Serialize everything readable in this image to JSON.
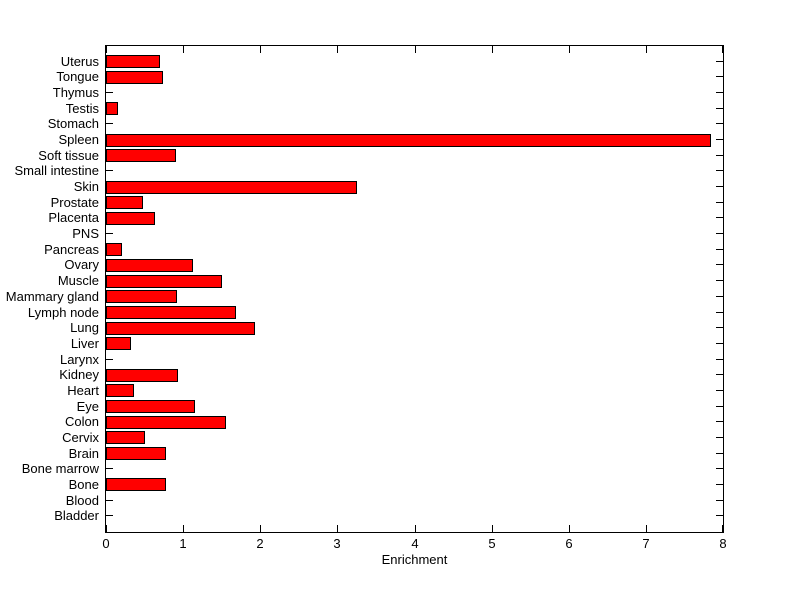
{
  "figure": {
    "background_color": "#ffffff",
    "axis_color": "#000000",
    "text_color": "#000000"
  },
  "chart_data": {
    "type": "bar",
    "orientation": "horizontal",
    "title": "",
    "xlabel": "Enrichment",
    "ylabel": "",
    "grid": false,
    "legend": "none",
    "xlim": [
      0,
      8
    ],
    "x_ticks": [
      "0",
      "1",
      "2",
      "3",
      "4",
      "5",
      "6",
      "7",
      "8"
    ],
    "x_tick_values": [
      0,
      1,
      2,
      3,
      4,
      5,
      6,
      7,
      8
    ],
    "bar_color": "#ff0000",
    "bar_edge_color": "#000000",
    "categories_top_to_bottom": [
      "Uterus",
      "Tongue",
      "Thymus",
      "Testis",
      "Stomach",
      "Spleen",
      "Soft tissue",
      "Small intestine",
      "Skin",
      "Prostate",
      "Placenta",
      "PNS",
      "Pancreas",
      "Ovary",
      "Muscle",
      "Mammary gland",
      "Lymph node",
      "Lung",
      "Liver",
      "Larynx",
      "Kidney",
      "Heart",
      "Eye",
      "Colon",
      "Cervix",
      "Brain",
      "Bone marrow",
      "Bone",
      "Blood",
      "Bladder"
    ],
    "values_top_to_bottom": [
      0.7,
      0.74,
      0,
      0.15,
      0,
      7.85,
      0.91,
      0,
      3.25,
      0.48,
      0.63,
      0,
      0.21,
      1.13,
      1.51,
      0.92,
      1.68,
      1.93,
      0.32,
      0,
      0.93,
      0.36,
      1.15,
      1.55,
      0.5,
      0.78,
      0,
      0.78,
      0,
      0
    ]
  }
}
